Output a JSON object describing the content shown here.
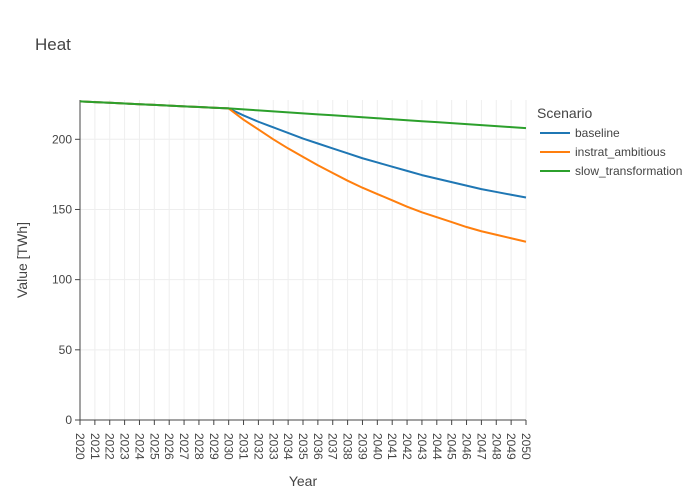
{
  "chart_data": {
    "type": "line",
    "title": "Heat",
    "xlabel": "Year",
    "ylabel": "Value [TWh]",
    "x": [
      2020,
      2021,
      2022,
      2023,
      2024,
      2025,
      2026,
      2027,
      2028,
      2029,
      2030,
      2031,
      2032,
      2033,
      2034,
      2035,
      2036,
      2037,
      2038,
      2039,
      2040,
      2041,
      2042,
      2043,
      2044,
      2045,
      2046,
      2047,
      2048,
      2049,
      2050
    ],
    "xlim": [
      2020,
      2050
    ],
    "ylim": [
      0,
      228
    ],
    "yticks": [
      0,
      50,
      100,
      150,
      200
    ],
    "grid": true,
    "legend_title": "Scenario",
    "legend_position": "right",
    "series": [
      {
        "name": "baseline",
        "color": "#1f77b4",
        "values": [
          227.0,
          226.5,
          226.0,
          225.5,
          225.0,
          224.5,
          224.0,
          223.5,
          223.0,
          222.5,
          222.0,
          217.0,
          212.5,
          208.5,
          204.5,
          200.5,
          197.0,
          193.5,
          190.0,
          186.5,
          183.5,
          180.5,
          177.5,
          174.5,
          172.0,
          169.5,
          167.0,
          164.5,
          162.5,
          160.5,
          158.5
        ]
      },
      {
        "name": "instrat_ambitious",
        "color": "#ff7f0e",
        "values": [
          227.0,
          226.5,
          226.0,
          225.5,
          225.0,
          224.5,
          224.0,
          223.5,
          223.0,
          222.5,
          222.0,
          214.0,
          207.0,
          200.0,
          193.5,
          187.5,
          181.5,
          176.0,
          170.5,
          165.5,
          161.0,
          156.5,
          152.0,
          148.0,
          144.5,
          141.0,
          137.5,
          134.5,
          132.0,
          129.5,
          127.0
        ]
      },
      {
        "name": "slow_transformation",
        "color": "#2ca02c",
        "values": [
          227.0,
          226.5,
          226.0,
          225.5,
          225.0,
          224.5,
          224.0,
          223.5,
          223.0,
          222.5,
          222.0,
          221.3,
          220.6,
          219.9,
          219.2,
          218.5,
          217.8,
          217.1,
          216.4,
          215.7,
          215.0,
          214.3,
          213.6,
          212.9,
          212.2,
          211.5,
          210.8,
          210.1,
          209.4,
          208.7,
          208.0
        ]
      }
    ]
  }
}
